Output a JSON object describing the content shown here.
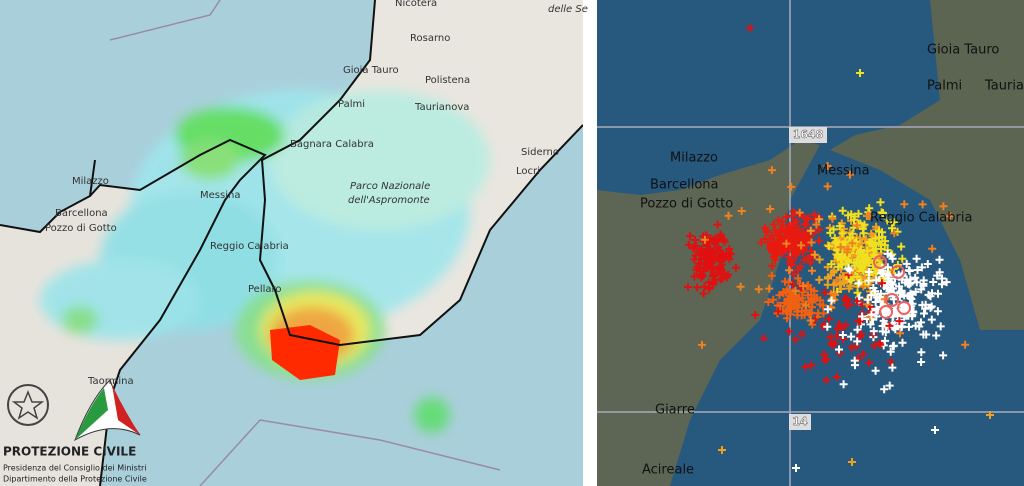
{
  "left_map": {
    "places": [
      "Nicotera",
      "Rosarno",
      "Gioia Tauro",
      "Polistena",
      "Palmi",
      "Taurianova",
      "Bagnara Calabra",
      "Siderno",
      "Locri",
      "Milazzo",
      "Barcellona",
      "Pozzo di Gotto",
      "Messina",
      "Reggio Calabria",
      "Pellaro",
      "Taormina",
      "delle Se"
    ],
    "park": [
      "Parco Nazionale",
      "dell'Aspromonte"
    ],
    "logo": {
      "title": "PROTEZIONE CIVILE",
      "line1": "Presidenza del Consiglio dei Ministri",
      "line2": "Dipartimento della Protezione Civile"
    }
  },
  "right_map": {
    "places": [
      "Gioia Tauro",
      "Palmi",
      "Tauriar",
      "Milazzo",
      "Barcellona",
      "Pozzo di Gotto",
      "Messina",
      "Reggio Calabria",
      "Giarre",
      "Acireale"
    ],
    "grid_labels": [
      "1648",
      "14"
    ]
  }
}
